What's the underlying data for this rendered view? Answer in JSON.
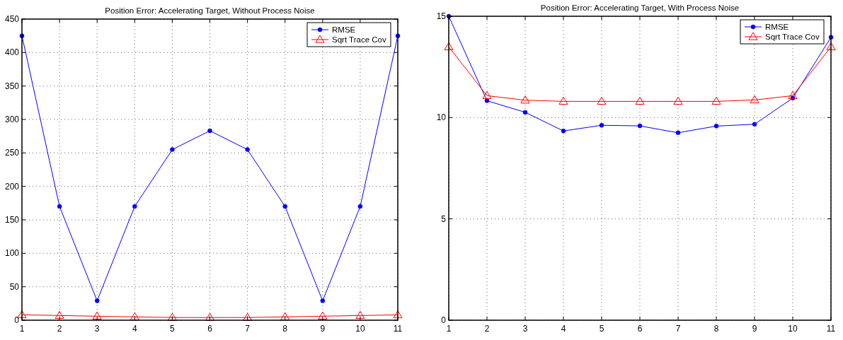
{
  "chart_data": [
    {
      "type": "line",
      "title": "Position Error: Accelerating Target, Without Process Noise",
      "x": [
        1,
        2,
        3,
        4,
        5,
        6,
        7,
        8,
        9,
        10,
        11
      ],
      "xlim": [
        1,
        11
      ],
      "xticks": [
        1,
        2,
        3,
        4,
        5,
        6,
        7,
        8,
        9,
        10,
        11
      ],
      "ylim": [
        0,
        450
      ],
      "yticks": [
        0,
        50,
        100,
        150,
        200,
        250,
        300,
        350,
        400,
        450
      ],
      "grid": true,
      "legend": "top right",
      "series": [
        {
          "name": "RMSE",
          "color": "#0000ff",
          "marker": "circle",
          "values": [
            425,
            170,
            29,
            170,
            255,
            283,
            255,
            170,
            29,
            170,
            425
          ]
        },
        {
          "name": "Sqrt Trace Cov",
          "color": "#ff0000",
          "marker": "triangle",
          "values": [
            8,
            7,
            6,
            5,
            4,
            4,
            4,
            5,
            6,
            7,
            8
          ]
        }
      ]
    },
    {
      "type": "line",
      "title": "Position Error: Accelerating Target, With Process Noise",
      "x": [
        1,
        2,
        3,
        4,
        5,
        6,
        7,
        8,
        9,
        10,
        11
      ],
      "xlim": [
        1,
        11
      ],
      "xticks": [
        1,
        2,
        3,
        4,
        5,
        6,
        7,
        8,
        9,
        10,
        11
      ],
      "ylim": [
        0,
        15
      ],
      "yticks": [
        0,
        5,
        10,
        15
      ],
      "grid": true,
      "legend": "top right",
      "series": [
        {
          "name": "RMSE",
          "color": "#0000ff",
          "marker": "circle",
          "values": [
            15,
            10.83,
            10.26,
            9.34,
            9.62,
            9.59,
            9.25,
            9.58,
            9.67,
            10.96,
            13.96
          ]
        },
        {
          "name": "Sqrt Trace Cov",
          "color": "#ff0000",
          "marker": "triangle",
          "values": [
            13.49,
            11.08,
            10.86,
            10.8,
            10.8,
            10.8,
            10.8,
            10.8,
            10.87,
            11.08,
            13.49
          ]
        }
      ]
    }
  ]
}
